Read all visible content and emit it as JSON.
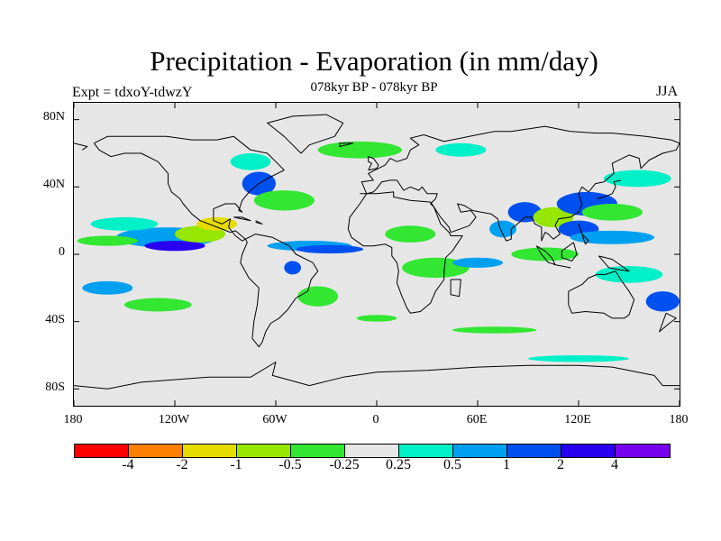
{
  "title": "Precipitation - Evaporation (in mm/day)",
  "subtitle": "078kyr BP - 078kyr BP",
  "experiment": "Expt = tdxoY-tdwzY",
  "season": "JJA",
  "map": {
    "projection": "cylindrical-equidistant",
    "lon_range": [
      -180,
      180
    ],
    "lat_range": [
      -90,
      90
    ],
    "background_color": "#e6e6e6",
    "lat_labels": [
      "80N",
      "40N",
      "0",
      "40S",
      "80S"
    ],
    "lon_labels": [
      "180",
      "120W",
      "60W",
      "0",
      "60E",
      "120E",
      "180"
    ]
  },
  "colorbar": {
    "colors": [
      "#ff0000",
      "#ff8000",
      "#e6dc00",
      "#96e600",
      "#32e632",
      "#e6e6e6",
      "#00f0c8",
      "#00a0f0",
      "#0050f0",
      "#2800f0",
      "#7800f0"
    ],
    "labels": [
      "-4",
      "-2",
      "-1",
      "-0.5",
      "-0.25",
      "0.25",
      "0.5",
      "1",
      "2",
      "4"
    ]
  },
  "regions": [
    {
      "lon": -125,
      "lat": 10,
      "rx": 30,
      "ry": 6,
      "level": 7
    },
    {
      "lon": -120,
      "lat": 5,
      "rx": 18,
      "ry": 3,
      "level": 9
    },
    {
      "lon": -105,
      "lat": 12,
      "rx": 15,
      "ry": 5,
      "level": 3
    },
    {
      "lon": -95,
      "lat": 18,
      "rx": 12,
      "ry": 4,
      "level": 2
    },
    {
      "lon": -160,
      "lat": 8,
      "rx": 18,
      "ry": 3,
      "level": 4
    },
    {
      "lon": -150,
      "lat": 18,
      "rx": 20,
      "ry": 4,
      "level": 6
    },
    {
      "lon": -70,
      "lat": 42,
      "rx": 10,
      "ry": 7,
      "level": 8
    },
    {
      "lon": -55,
      "lat": 32,
      "rx": 18,
      "ry": 6,
      "level": 4
    },
    {
      "lon": -75,
      "lat": 55,
      "rx": 12,
      "ry": 5,
      "level": 6
    },
    {
      "lon": -40,
      "lat": 5,
      "rx": 25,
      "ry": 3,
      "level": 7
    },
    {
      "lon": -28,
      "lat": 3,
      "rx": 20,
      "ry": 2.5,
      "level": 8
    },
    {
      "lon": -50,
      "lat": -8,
      "rx": 5,
      "ry": 4,
      "level": 8
    },
    {
      "lon": -35,
      "lat": -25,
      "rx": 12,
      "ry": 6,
      "level": 4
    },
    {
      "lon": 20,
      "lat": 12,
      "rx": 15,
      "ry": 5,
      "level": 4
    },
    {
      "lon": 35,
      "lat": -8,
      "rx": 20,
      "ry": 6,
      "level": 4
    },
    {
      "lon": -10,
      "lat": 62,
      "rx": 25,
      "ry": 5,
      "level": 4
    },
    {
      "lon": 50,
      "lat": 62,
      "rx": 15,
      "ry": 4,
      "level": 6
    },
    {
      "lon": 88,
      "lat": 25,
      "rx": 10,
      "ry": 6,
      "level": 8
    },
    {
      "lon": 75,
      "lat": 15,
      "rx": 8,
      "ry": 5,
      "level": 7
    },
    {
      "lon": 105,
      "lat": 22,
      "rx": 12,
      "ry": 6,
      "level": 3
    },
    {
      "lon": 125,
      "lat": 30,
      "rx": 18,
      "ry": 7,
      "level": 8
    },
    {
      "lon": 140,
      "lat": 25,
      "rx": 18,
      "ry": 5,
      "level": 4
    },
    {
      "lon": 120,
      "lat": 15,
      "rx": 12,
      "ry": 5,
      "level": 8
    },
    {
      "lon": 140,
      "lat": 10,
      "rx": 25,
      "ry": 4,
      "level": 7
    },
    {
      "lon": 100,
      "lat": 0,
      "rx": 20,
      "ry": 4,
      "level": 4
    },
    {
      "lon": 150,
      "lat": -12,
      "rx": 20,
      "ry": 5,
      "level": 6
    },
    {
      "lon": 170,
      "lat": -28,
      "rx": 10,
      "ry": 6,
      "level": 8
    },
    {
      "lon": 155,
      "lat": 45,
      "rx": 20,
      "ry": 5,
      "level": 6
    },
    {
      "lon": 60,
      "lat": -5,
      "rx": 15,
      "ry": 3,
      "level": 7
    },
    {
      "lon": -160,
      "lat": -20,
      "rx": 15,
      "ry": 4,
      "level": 7
    },
    {
      "lon": -130,
      "lat": -30,
      "rx": 20,
      "ry": 4,
      "level": 4
    },
    {
      "lon": 70,
      "lat": -45,
      "rx": 25,
      "ry": 2,
      "level": 4
    },
    {
      "lon": 120,
      "lat": -62,
      "rx": 30,
      "ry": 2,
      "level": 6
    },
    {
      "lon": 0,
      "lat": -38,
      "rx": 12,
      "ry": 2,
      "level": 4
    }
  ],
  "coastlines": [
    [
      [
        -168,
        66
      ],
      [
        -160,
        70
      ],
      [
        -140,
        70
      ],
      [
        -125,
        70
      ],
      [
        -110,
        68
      ],
      [
        -95,
        68
      ],
      [
        -85,
        70
      ],
      [
        -75,
        62
      ],
      [
        -65,
        60
      ],
      [
        -60,
        55
      ],
      [
        -55,
        50
      ],
      [
        -65,
        45
      ],
      [
        -70,
        42
      ],
      [
        -75,
        38
      ],
      [
        -80,
        32
      ],
      [
        -82,
        26
      ],
      [
        -80,
        25
      ],
      [
        -84,
        30
      ],
      [
        -90,
        30
      ],
      [
        -97,
        27
      ],
      [
        -97,
        20
      ],
      [
        -92,
        18
      ],
      [
        -87,
        21
      ],
      [
        -88,
        16
      ],
      [
        -84,
        11
      ],
      [
        -80,
        8
      ],
      [
        -78,
        9
      ],
      [
        -84,
        14
      ],
      [
        -87,
        13
      ],
      [
        -92,
        15
      ],
      [
        -105,
        20
      ],
      [
        -110,
        24
      ],
      [
        -115,
        30
      ],
      [
        -117,
        33
      ],
      [
        -122,
        37
      ],
      [
        -124,
        42
      ],
      [
        -124,
        48
      ],
      [
        -130,
        55
      ],
      [
        -140,
        60
      ],
      [
        -150,
        60
      ],
      [
        -158,
        58
      ],
      [
        -165,
        62
      ],
      [
        -168,
        66
      ]
    ],
    [
      [
        -78,
        9
      ],
      [
        -72,
        12
      ],
      [
        -62,
        10
      ],
      [
        -52,
        5
      ],
      [
        -48,
        0
      ],
      [
        -38,
        -5
      ],
      [
        -35,
        -10
      ],
      [
        -39,
        -15
      ],
      [
        -41,
        -22
      ],
      [
        -48,
        -26
      ],
      [
        -53,
        -33
      ],
      [
        -58,
        -38
      ],
      [
        -63,
        -41
      ],
      [
        -66,
        -46
      ],
      [
        -68,
        -52
      ],
      [
        -70,
        -55
      ],
      [
        -74,
        -50
      ],
      [
        -73,
        -40
      ],
      [
        -71,
        -30
      ],
      [
        -70,
        -20
      ],
      [
        -76,
        -14
      ],
      [
        -81,
        -5
      ],
      [
        -80,
        0
      ],
      [
        -77,
        7
      ],
      [
        -78,
        9
      ]
    ],
    [
      [
        -45,
        60
      ],
      [
        -40,
        65
      ],
      [
        -25,
        70
      ],
      [
        -20,
        78
      ],
      [
        -30,
        83
      ],
      [
        -50,
        82
      ],
      [
        -65,
        78
      ],
      [
        -60,
        74
      ],
      [
        -55,
        70
      ],
      [
        -50,
        65
      ],
      [
        -45,
        60
      ]
    ],
    [
      [
        -10,
        36
      ],
      [
        -6,
        36
      ],
      [
        -9,
        43
      ],
      [
        -2,
        44
      ],
      [
        -5,
        48
      ],
      [
        5,
        53
      ],
      [
        8,
        57
      ],
      [
        12,
        55
      ],
      [
        18,
        57
      ],
      [
        20,
        62
      ],
      [
        25,
        65
      ],
      [
        20,
        69
      ],
      [
        28,
        71
      ],
      [
        40,
        67
      ],
      [
        55,
        70
      ],
      [
        70,
        73
      ],
      [
        80,
        73
      ],
      [
        100,
        76
      ],
      [
        115,
        73
      ],
      [
        130,
        72
      ],
      [
        140,
        72
      ],
      [
        160,
        70
      ],
      [
        175,
        68
      ],
      [
        180,
        66
      ]
    ],
    [
      [
        -180,
        66
      ],
      [
        -172,
        64
      ],
      [
        -175,
        62
      ]
    ],
    [
      [
        180,
        66
      ],
      [
        178,
        62
      ],
      [
        170,
        60
      ],
      [
        162,
        56
      ],
      [
        157,
        51
      ],
      [
        156,
        57
      ],
      [
        150,
        59
      ],
      [
        140,
        54
      ],
      [
        141,
        48
      ],
      [
        135,
        43
      ],
      [
        130,
        42
      ],
      [
        126,
        37
      ],
      [
        122,
        40
      ],
      [
        120,
        36
      ],
      [
        122,
        30
      ],
      [
        120,
        25
      ],
      [
        115,
        22
      ],
      [
        108,
        21
      ],
      [
        106,
        17
      ],
      [
        109,
        12
      ],
      [
        105,
        9
      ],
      [
        102,
        12
      ],
      [
        100,
        13
      ],
      [
        98,
        8
      ],
      [
        98,
        16
      ],
      [
        94,
        18
      ],
      [
        92,
        22
      ],
      [
        88,
        22
      ],
      [
        86,
        20
      ],
      [
        80,
        15
      ],
      [
        80,
        9
      ],
      [
        77,
        8
      ],
      [
        73,
        16
      ],
      [
        72,
        21
      ],
      [
        68,
        24
      ],
      [
        62,
        25
      ],
      [
        57,
        26
      ],
      [
        52,
        29
      ],
      [
        48,
        30
      ],
      [
        50,
        25
      ],
      [
        56,
        26
      ],
      [
        59,
        22
      ],
      [
        55,
        17
      ],
      [
        44,
        13
      ],
      [
        43,
        16
      ],
      [
        38,
        22
      ],
      [
        34,
        28
      ],
      [
        32,
        30
      ],
      [
        35,
        33
      ],
      [
        36,
        36
      ],
      [
        30,
        36
      ],
      [
        27,
        40
      ],
      [
        25,
        38
      ],
      [
        20,
        40
      ],
      [
        16,
        38
      ],
      [
        12,
        44
      ],
      [
        8,
        44
      ],
      [
        3,
        43
      ],
      [
        0,
        39
      ],
      [
        -2,
        37
      ],
      [
        -6,
        36
      ]
    ],
    [
      [
        -6,
        36
      ],
      [
        -10,
        30
      ],
      [
        -16,
        22
      ],
      [
        -17,
        15
      ],
      [
        -15,
        10
      ],
      [
        -8,
        5
      ],
      [
        -2,
        5
      ],
      [
        5,
        6
      ],
      [
        9,
        4
      ],
      [
        9,
        -1
      ],
      [
        12,
        -5
      ],
      [
        13,
        -10
      ],
      [
        12,
        -17
      ],
      [
        15,
        -25
      ],
      [
        18,
        -32
      ],
      [
        20,
        -35
      ],
      [
        26,
        -34
      ],
      [
        32,
        -29
      ],
      [
        35,
        -22
      ],
      [
        40,
        -15
      ],
      [
        40,
        -10
      ],
      [
        41,
        -2
      ],
      [
        45,
        2
      ],
      [
        51,
        11
      ],
      [
        44,
        11
      ],
      [
        43,
        13
      ],
      [
        38,
        18
      ],
      [
        34,
        28
      ],
      [
        32,
        31
      ],
      [
        20,
        32
      ],
      [
        10,
        34
      ],
      [
        10,
        37
      ],
      [
        0,
        36
      ],
      [
        -6,
        36
      ]
    ],
    [
      [
        114,
        -22
      ],
      [
        114,
        -30
      ],
      [
        116,
        -35
      ],
      [
        124,
        -34
      ],
      [
        135,
        -35
      ],
      [
        140,
        -38
      ],
      [
        147,
        -38
      ],
      [
        150,
        -36
      ],
      [
        153,
        -27
      ],
      [
        150,
        -22
      ],
      [
        145,
        -15
      ],
      [
        142,
        -10
      ],
      [
        136,
        -12
      ],
      [
        131,
        -12
      ],
      [
        126,
        -14
      ],
      [
        122,
        -18
      ],
      [
        114,
        -22
      ]
    ],
    [
      [
        -180,
        -78
      ],
      [
        -160,
        -80
      ],
      [
        -140,
        -76
      ],
      [
        -100,
        -73
      ],
      [
        -75,
        -73
      ],
      [
        -60,
        -64
      ],
      [
        -62,
        -72
      ],
      [
        -40,
        -78
      ],
      [
        -20,
        -73
      ],
      [
        0,
        -70
      ],
      [
        30,
        -69
      ],
      [
        60,
        -67
      ],
      [
        90,
        -66
      ],
      [
        120,
        -66
      ],
      [
        140,
        -67
      ],
      [
        165,
        -72
      ],
      [
        170,
        -78
      ],
      [
        180,
        -78
      ]
    ],
    [
      [
        95,
        5
      ],
      [
        100,
        2
      ],
      [
        104,
        -2
      ],
      [
        106,
        -6
      ],
      [
        102,
        -5
      ],
      [
        98,
        0
      ],
      [
        95,
        5
      ]
    ],
    [
      [
        105,
        -6
      ],
      [
        115,
        -8
      ],
      [
        114,
        -8
      ]
    ],
    [
      [
        110,
        2
      ],
      [
        117,
        7
      ],
      [
        119,
        0
      ],
      [
        116,
        -4
      ],
      [
        110,
        -2
      ],
      [
        110,
        2
      ]
    ],
    [
      [
        132,
        -1
      ],
      [
        140,
        -3
      ],
      [
        150,
        -10
      ],
      [
        143,
        -9
      ],
      [
        138,
        -8
      ],
      [
        132,
        -1
      ]
    ],
    [
      [
        131,
        33
      ],
      [
        135,
        34
      ],
      [
        140,
        36
      ],
      [
        142,
        40
      ],
      [
        141,
        43
      ],
      [
        145,
        44
      ]
    ],
    [
      [
        44,
        -15
      ],
      [
        50,
        -15
      ],
      [
        49,
        -25
      ],
      [
        44,
        -24
      ],
      [
        44,
        -15
      ]
    ],
    [
      [
        -5,
        50
      ],
      [
        0,
        51
      ],
      [
        1,
        53
      ],
      [
        -2,
        57
      ],
      [
        -5,
        58
      ],
      [
        -5,
        55
      ],
      [
        -3,
        54
      ],
      [
        -5,
        50
      ]
    ],
    [
      [
        -14,
        66
      ],
      [
        -22,
        66
      ],
      [
        -22,
        64
      ],
      [
        -14,
        66
      ]
    ],
    [
      [
        172,
        -35
      ],
      [
        178,
        -38
      ],
      [
        174,
        -41
      ],
      [
        168,
        -46
      ],
      [
        172,
        -35
      ]
    ],
    [
      [
        120,
        18
      ],
      [
        122,
        12
      ],
      [
        126,
        8
      ],
      [
        124,
        6
      ],
      [
        120,
        18
      ]
    ],
    [
      [
        -85,
        22
      ],
      [
        -75,
        20
      ],
      [
        -80,
        22
      ],
      [
        -85,
        22
      ]
    ],
    [
      [
        -72,
        19
      ],
      [
        -68,
        18
      ],
      [
        -72,
        20
      ]
    ]
  ]
}
